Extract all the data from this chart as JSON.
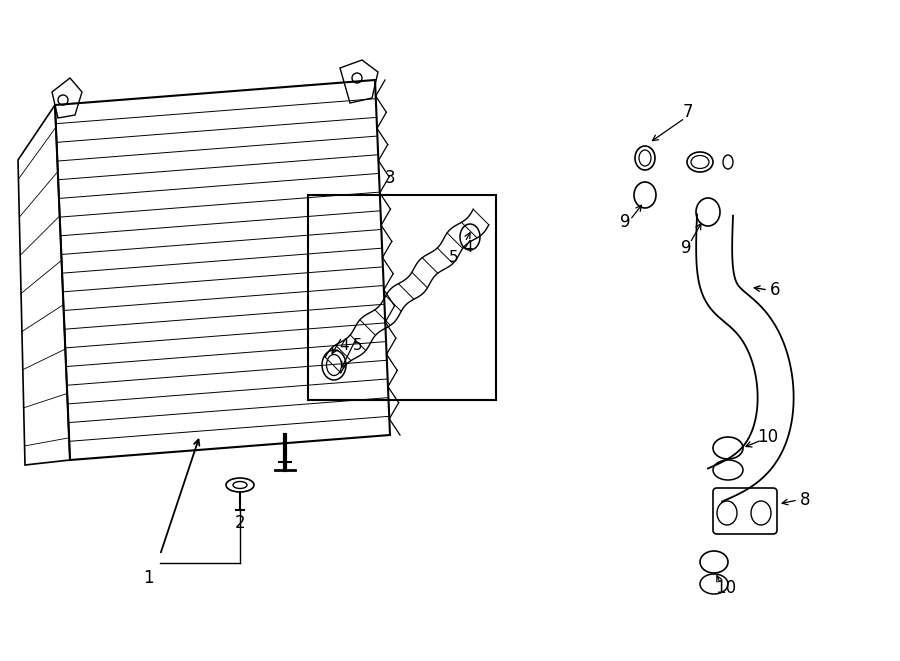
{
  "bg_color": "#ffffff",
  "line_color": "#000000",
  "figsize": [
    9.0,
    6.61
  ],
  "dpi": 100
}
